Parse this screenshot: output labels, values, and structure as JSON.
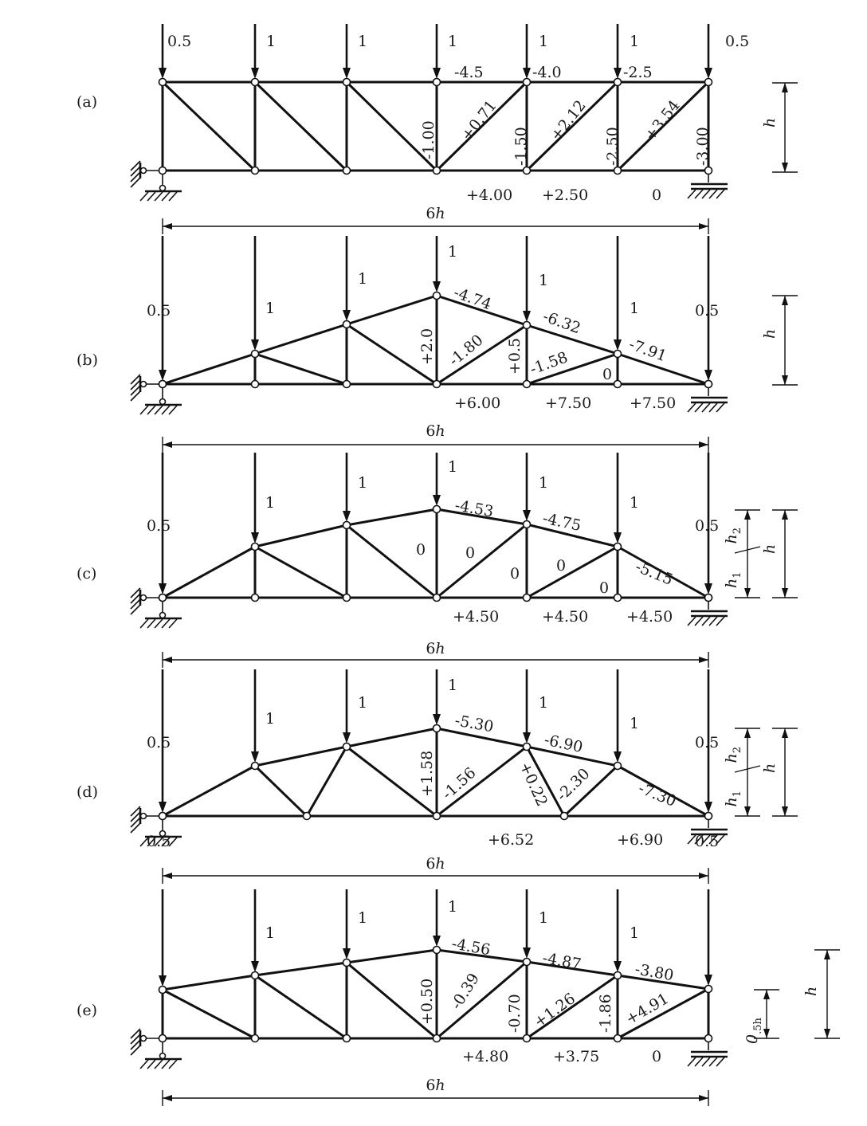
{
  "panels": [
    {
      "tag": "(a)",
      "loads": [
        "0.5",
        "1",
        "1",
        "1",
        "1",
        "1",
        "0.5"
      ],
      "span_label": "6h",
      "height_labels": [
        "h"
      ],
      "force_labels": [
        "-4.5",
        "-4.0",
        "-2.5",
        "-1.00",
        "+0.71",
        "-1.50",
        "+2.12",
        "-2.50",
        "+3.54",
        "-3.00",
        "+4.00",
        "+2.50",
        "0"
      ]
    },
    {
      "tag": "(b)",
      "loads": [
        "0.5",
        "1",
        "1",
        "1",
        "1",
        "1",
        "0.5"
      ],
      "span_label": "6h",
      "height_labels": [
        "h"
      ],
      "force_labels": [
        "-4.74",
        "-6.32",
        "-7.91",
        "+2.0",
        "-1.80",
        "+0.5",
        "-1.58",
        "0",
        "+6.00",
        "+7.50",
        "+7.50"
      ]
    },
    {
      "tag": "(c)",
      "loads": [
        "0.5",
        "1",
        "1",
        "1",
        "1",
        "1",
        "0.5"
      ],
      "span_label": "6h",
      "height_labels": [
        "h",
        "h2",
        "h1"
      ],
      "force_labels": [
        "-4.53",
        "-4.75",
        "-5.15",
        "0",
        "0",
        "0",
        "0",
        "0",
        "+4.50",
        "+4.50",
        "+4.50"
      ]
    },
    {
      "tag": "(d)",
      "loads": [
        "0.5",
        "1",
        "1",
        "1",
        "1",
        "1",
        "0.5"
      ],
      "span_label": "6h",
      "height_labels": [
        "h",
        "h2",
        "h1"
      ],
      "force_labels": [
        "-5.30",
        "-6.90",
        "-7.30",
        "+1.58",
        "-1.56",
        "+0.22",
        "-2.30",
        "+6.52",
        "+6.90"
      ]
    },
    {
      "tag": "(e)",
      "loads": [
        "0.5",
        "1",
        "1",
        "1",
        "1",
        "1",
        "0.5"
      ],
      "span_label": "6h",
      "height_labels": [
        "h",
        "0.5h"
      ],
      "force_labels": [
        "-4.56",
        "-4.87",
        "-3.80",
        "+0.50",
        "-0.39",
        "-0.70",
        "+1.26",
        "-1.86",
        "+4.91",
        "+4.80",
        "+3.75",
        "0"
      ]
    }
  ]
}
